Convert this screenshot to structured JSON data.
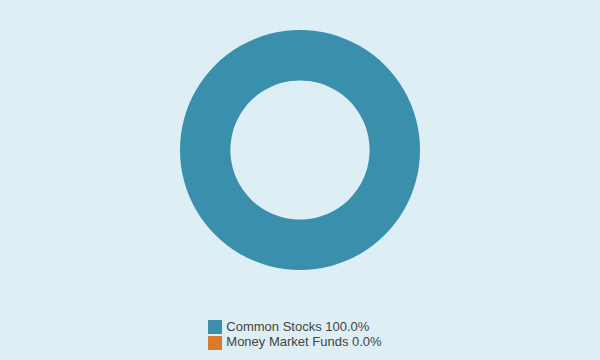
{
  "chart_data": {
    "type": "donut",
    "categories": [
      "Common Stocks 100.0%",
      "Money Market Funds 0.0%"
    ],
    "values": [
      100.0,
      0.001
    ],
    "colors": [
      "#3a8fad",
      "#d97b2a"
    ],
    "legend": "bottom"
  }
}
